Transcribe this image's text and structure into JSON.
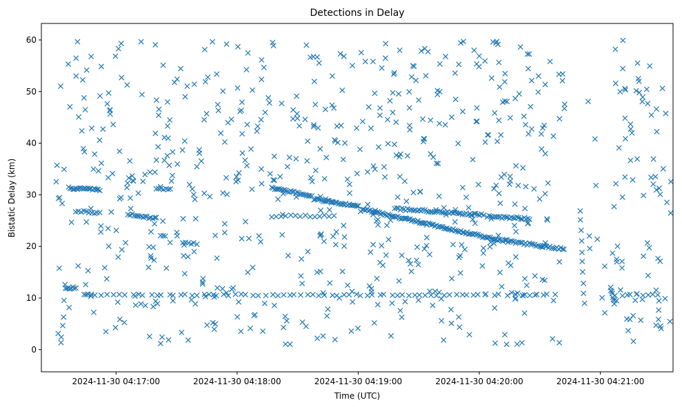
{
  "chart_data": {
    "type": "scatter",
    "title": "Detections in Delay",
    "xlabel": "Time (UTC)",
    "ylabel": "Bistatic Delay (km)",
    "marker": "x",
    "marker_color": "#1f77b4",
    "x_unit": "seconds after 2024-11-30 04:16:00 UTC",
    "xlim": [
      23,
      336
    ],
    "ylim": [
      -4.3,
      63.2
    ],
    "x_ticks": [
      {
        "value": 60,
        "label": "2024-11-30 04:17:00"
      },
      {
        "value": 120,
        "label": "2024-11-30 04:18:00"
      },
      {
        "value": 180,
        "label": "2024-11-30 04:19:00"
      },
      {
        "value": 240,
        "label": "2024-11-30 04:20:00"
      },
      {
        "value": 300,
        "label": "2024-11-30 04:21:00"
      }
    ],
    "y_ticks": [
      {
        "value": 0,
        "label": "0"
      },
      {
        "value": 10,
        "label": "10"
      },
      {
        "value": 20,
        "label": "20"
      },
      {
        "value": 30,
        "label": "30"
      },
      {
        "value": 40,
        "label": "40"
      },
      {
        "value": 50,
        "label": "50"
      },
      {
        "value": 60,
        "label": "60"
      }
    ],
    "track_segments": [
      {
        "t_start": 36.5,
        "t_end": 52,
        "delay_start": 31.3,
        "delay_end": 31.0,
        "count": 22
      },
      {
        "t_start": 35,
        "t_end": 40,
        "delay_start": 11.9,
        "delay_end": 12.0,
        "count": 8
      },
      {
        "t_start": 40,
        "t_end": 52,
        "delay_start": 26.8,
        "delay_end": 26.5,
        "count": 10
      },
      {
        "t_start": 66,
        "t_end": 80,
        "delay_start": 26.2,
        "delay_end": 25.4,
        "count": 16
      },
      {
        "t_start": 80,
        "t_end": 87,
        "delay_start": 31.2,
        "delay_end": 31.2,
        "count": 7
      },
      {
        "t_start": 137,
        "t_end": 157,
        "delay_start": 31.4,
        "delay_end": 29.8,
        "count": 26
      },
      {
        "t_start": 158,
        "t_end": 180,
        "delay_start": 29.2,
        "delay_end": 27.8,
        "count": 30
      },
      {
        "t_start": 182,
        "t_end": 250,
        "delay_start": 27.2,
        "delay_end": 21.2,
        "count": 90
      },
      {
        "t_start": 250,
        "t_end": 282,
        "delay_start": 21.2,
        "delay_end": 19.5,
        "count": 38
      },
      {
        "t_start": 198,
        "t_end": 242,
        "delay_start": 27.3,
        "delay_end": 26.1,
        "count": 48
      },
      {
        "t_start": 244,
        "t_end": 265,
        "delay_start": 25.8,
        "delay_end": 25.4,
        "count": 24
      },
      {
        "t_start": 137,
        "t_end": 168,
        "delay_start": 25.8,
        "delay_end": 26.0,
        "count": 14
      },
      {
        "t_start": 93,
        "t_end": 100,
        "delay_start": 20.6,
        "delay_end": 20.6,
        "count": 6
      },
      {
        "t_start": 290,
        "t_end": 292,
        "delay_start": 27.0,
        "delay_end": 9.0,
        "count": 10
      },
      {
        "t_start": 305,
        "t_end": 307,
        "delay_start": 12.0,
        "delay_end": 9.0,
        "count": 8
      }
    ],
    "band_segments": [
      {
        "t_start": 43,
        "t_end": 175,
        "delay": 10.6,
        "count": 44
      },
      {
        "t_start": 175,
        "t_end": 245,
        "delay": 10.6,
        "count": 24
      },
      {
        "t_start": 246,
        "t_end": 280,
        "delay": 10.6,
        "count": 10
      },
      {
        "t_start": 307,
        "t_end": 330,
        "delay": 10.6,
        "count": 9
      }
    ],
    "gap_interval": [
      282,
      303
    ],
    "scatter_field": {
      "t_start": 30,
      "t_end": 335,
      "delay_min": 1,
      "delay_max": 60,
      "count": 760,
      "seed": 7
    }
  }
}
